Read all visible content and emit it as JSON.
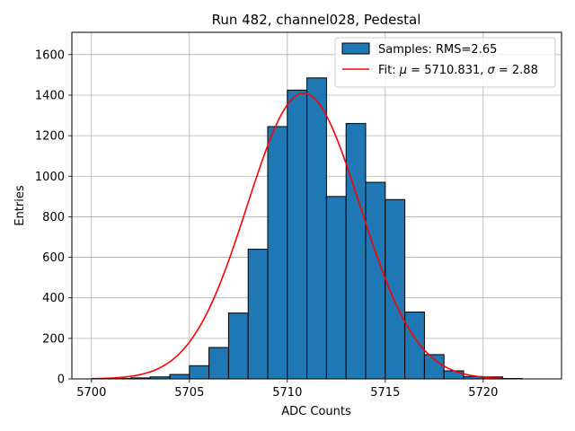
{
  "chart_data": {
    "type": "bar",
    "title": "Run 482, channel028, Pedestal",
    "xlabel": "ADC Counts",
    "ylabel": "Entries",
    "xlim": [
      5699,
      5724
    ],
    "ylim": [
      0,
      1710
    ],
    "grid": true,
    "xticks": [
      5700,
      5705,
      5710,
      5715,
      5720
    ],
    "yticks": [
      0,
      200,
      400,
      600,
      800,
      1000,
      1200,
      1400,
      1600
    ],
    "bin_width": 1,
    "bins": [
      {
        "x": 5701,
        "value": 2
      },
      {
        "x": 5702,
        "value": 5
      },
      {
        "x": 5703,
        "value": 10
      },
      {
        "x": 5704,
        "value": 22
      },
      {
        "x": 5705,
        "value": 65
      },
      {
        "x": 5706,
        "value": 155
      },
      {
        "x": 5707,
        "value": 325
      },
      {
        "x": 5708,
        "value": 640
      },
      {
        "x": 5709,
        "value": 1245
      },
      {
        "x": 5710,
        "value": 1425
      },
      {
        "x": 5711,
        "value": 1485
      },
      {
        "x": 5712,
        "value": 900
      },
      {
        "x": 5713,
        "value": 1260
      },
      {
        "x": 5714,
        "value": 970
      },
      {
        "x": 5715,
        "value": 885
      },
      {
        "x": 5716,
        "value": 330
      },
      {
        "x": 5717,
        "value": 120
      },
      {
        "x": 5718,
        "value": 40
      },
      {
        "x": 5719,
        "value": 12
      },
      {
        "x": 5720,
        "value": 10
      },
      {
        "x": 5721,
        "value": 2
      }
    ],
    "fit": {
      "mu": 5710.831,
      "sigma": 2.88,
      "amplitude": 1410,
      "x_range": [
        5700,
        5721
      ]
    },
    "legend": {
      "position": "upper-right",
      "entries": [
        {
          "label": "Samples: RMS=2.65",
          "kind": "patch",
          "color": "#1f77b4"
        },
        {
          "label_prefix": "Fit: ",
          "mu_symbol": "μ",
          "mu_text": " = 5710.831, ",
          "sigma_symbol": "σ",
          "sigma_text": " = 2.88",
          "kind": "line",
          "color": "#ff0000"
        }
      ]
    },
    "colors": {
      "bar_fill": "#1f77b4",
      "bar_edge": "#000000",
      "fit_line": "#ff0000",
      "grid": "#b0b0b0"
    }
  }
}
